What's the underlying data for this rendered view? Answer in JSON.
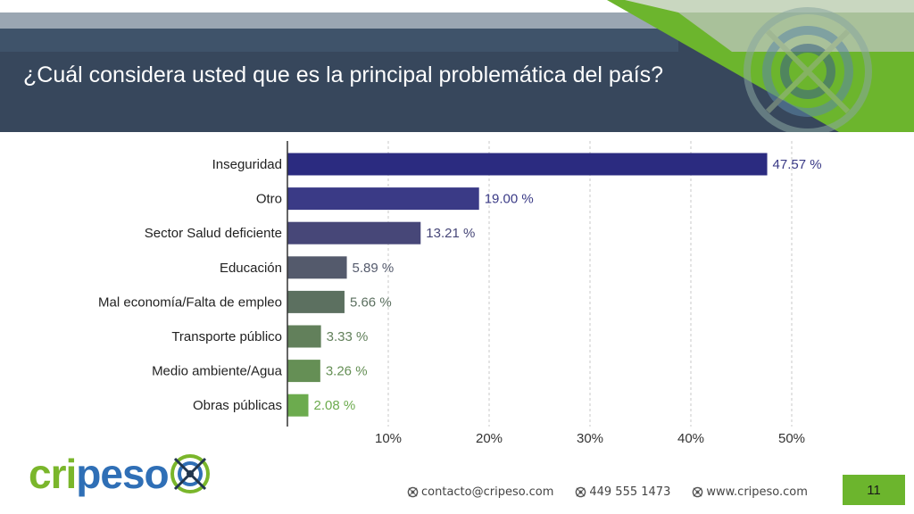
{
  "title": "¿Cuál considera usted que es la principal problemática del país?",
  "colors": {
    "header_bg": "#37475c",
    "header_top": "#4d6076",
    "accent_green": "#6cb52d",
    "bar_colors": [
      "#2b2b80",
      "#3a3a86",
      "#474778",
      "#545a6c",
      "#5c7060",
      "#62805b",
      "#658f55",
      "#6cab4e"
    ],
    "label_colors": [
      "#3a3a86",
      "#3a3a86",
      "#474778",
      "#545a6c",
      "#5c7060",
      "#62805b",
      "#658f55",
      "#6cab4e"
    ]
  },
  "chart_data": {
    "type": "bar",
    "orientation": "horizontal",
    "categories": [
      "Inseguridad",
      "Otro",
      "Sector Salud deficiente",
      "Educación",
      "Mal economía/Falta de empleo",
      "Transporte público",
      "Medio ambiente/Agua",
      "Obras públicas"
    ],
    "values": [
      47.57,
      19.0,
      13.21,
      5.89,
      5.66,
      3.33,
      3.26,
      2.08
    ],
    "value_labels": [
      "47.57 %",
      "19.00 %",
      "13.21 %",
      "5.89 %",
      "5.66 %",
      "3.33 %",
      "3.26 %",
      "2.08 %"
    ],
    "x_ticks": [
      10,
      20,
      30,
      40,
      50
    ],
    "x_tick_labels": [
      "10%",
      "20%",
      "30%",
      "40%",
      "50%"
    ],
    "xlim": [
      0,
      52
    ],
    "grid": "vertical dashed"
  },
  "logo": {
    "text_green": "cri",
    "text_blue": "peso"
  },
  "footer": {
    "email": "contacto@cripeso.com",
    "phone": "449 555 1473",
    "website": "www.cripeso.com",
    "page_number": "11"
  }
}
